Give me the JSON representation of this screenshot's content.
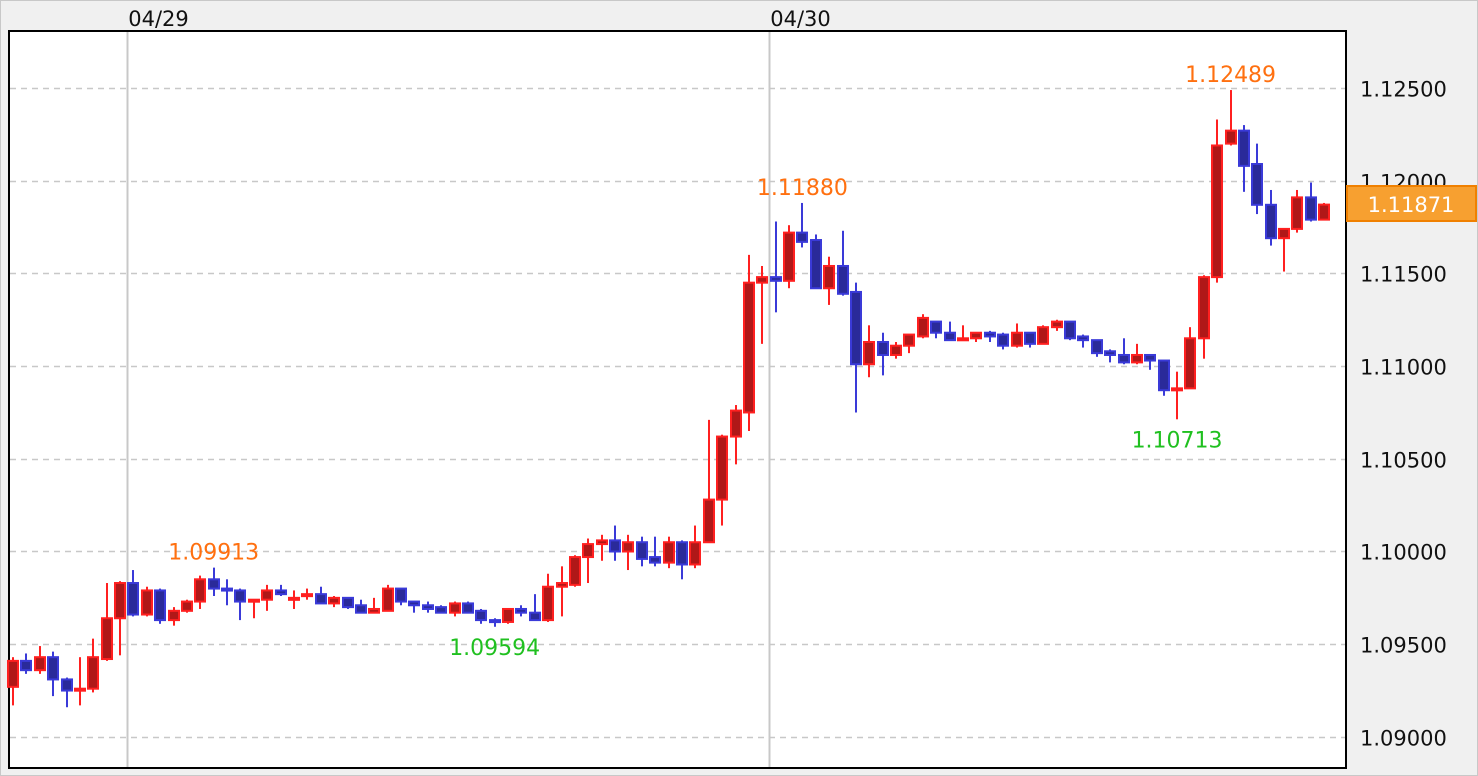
{
  "chart_data": {
    "type": "candlestick",
    "title": "",
    "grid": true,
    "colors": {
      "up_fill": "#b01818",
      "up_border": "#ff2020",
      "down_fill": "#2a2a9a",
      "down_border": "#3a3ad8",
      "high_label": "#ff7010",
      "low_label": "#20c020",
      "last_price_bg": "#f7a030",
      "last_price_border": "#f08000"
    },
    "y_axis": {
      "range": [
        1.0885,
        1.128
      ],
      "ticks": [
        "1.09000",
        "1.09500",
        "1.10000",
        "1.10500",
        "1.11000",
        "1.11500",
        "1.12000",
        "1.12500"
      ]
    },
    "day_labels": [
      {
        "label": "04/29",
        "candle_index": 8.5
      },
      {
        "label": "04/30",
        "candle_index": 56.5
      }
    ],
    "last_price": "1.11871",
    "ohlc_fields": [
      "open",
      "high",
      "low",
      "close"
    ],
    "candles": [
      [
        1.0927,
        1.0943,
        1.0917,
        1.0941
      ],
      [
        1.0941,
        1.0945,
        1.0934,
        1.0936
      ],
      [
        1.0936,
        1.0949,
        1.0934,
        1.0943
      ],
      [
        1.0943,
        1.0946,
        1.0922,
        1.0931
      ],
      [
        1.0931,
        1.0932,
        1.0916,
        1.0925
      ],
      [
        1.0925,
        1.0943,
        1.0917,
        1.0926
      ],
      [
        1.0926,
        1.0953,
        1.0924,
        1.0943
      ],
      [
        1.0942,
        1.0983,
        1.0941,
        1.0964
      ],
      [
        1.0964,
        1.0984,
        1.0944,
        1.0983
      ],
      [
        1.0983,
        1.099,
        1.0965,
        1.0966
      ],
      [
        1.0966,
        1.0981,
        1.0965,
        1.0979
      ],
      [
        1.0979,
        1.098,
        1.0961,
        1.0963
      ],
      [
        1.0963,
        1.097,
        1.096,
        1.0968
      ],
      [
        1.0968,
        1.0974,
        1.0967,
        1.0973
      ],
      [
        1.0973,
        1.0987,
        1.0969,
        1.0985
      ],
      [
        1.0985,
        1.09913,
        1.0976,
        1.098
      ],
      [
        1.098,
        1.0985,
        1.0971,
        1.0979
      ],
      [
        1.0979,
        1.098,
        1.0963,
        1.0973
      ],
      [
        1.0973,
        1.0974,
        1.0964,
        1.0974
      ],
      [
        1.0974,
        1.0982,
        1.0968,
        1.0979
      ],
      [
        1.0979,
        1.0982,
        1.0976,
        1.0977
      ],
      [
        1.0974,
        1.0979,
        1.0969,
        1.0975
      ],
      [
        1.0976,
        1.098,
        1.0974,
        1.0977
      ],
      [
        1.0977,
        1.0981,
        1.0972,
        1.0972
      ],
      [
        1.0972,
        1.0976,
        1.097,
        1.0975
      ],
      [
        1.0975,
        1.0975,
        1.0969,
        1.097
      ],
      [
        1.0971,
        1.0974,
        1.0967,
        1.0967
      ],
      [
        1.0967,
        1.0975,
        1.0967,
        1.0969
      ],
      [
        1.0968,
        1.0982,
        1.0968,
        1.098
      ],
      [
        1.098,
        1.098,
        1.0971,
        1.0973
      ],
      [
        1.0973,
        1.0973,
        1.0967,
        1.0971
      ],
      [
        1.0971,
        1.0973,
        1.0967,
        1.0969
      ],
      [
        1.097,
        1.0971,
        1.0967,
        1.0967
      ],
      [
        1.0967,
        1.0973,
        1.0965,
        1.0972
      ],
      [
        1.0972,
        1.0973,
        1.0967,
        1.0967
      ],
      [
        1.0968,
        1.0969,
        1.0961,
        1.0963
      ],
      [
        1.0963,
        1.0964,
        1.09594,
        1.0962
      ],
      [
        1.0962,
        1.0969,
        1.0961,
        1.0969
      ],
      [
        1.0969,
        1.0971,
        1.0965,
        1.0967
      ],
      [
        1.0967,
        1.0977,
        1.0963,
        1.0963
      ],
      [
        1.0963,
        1.0988,
        1.0962,
        1.0981
      ],
      [
        1.0981,
        1.0992,
        1.0965,
        1.0983
      ],
      [
        1.0982,
        1.0998,
        1.0981,
        1.0997
      ],
      [
        1.0997,
        1.1007,
        1.0983,
        1.1004
      ],
      [
        1.1004,
        1.1009,
        1.0995,
        1.1006
      ],
      [
        1.1006,
        1.1014,
        1.0995,
        1.1
      ],
      [
        1.1,
        1.1009,
        1.099,
        1.1005
      ],
      [
        1.1005,
        1.1008,
        1.0992,
        1.0996
      ],
      [
        1.0997,
        1.1008,
        1.0992,
        1.0994
      ],
      [
        1.0994,
        1.1008,
        1.0991,
        1.1005
      ],
      [
        1.1005,
        1.1006,
        1.0985,
        1.0993
      ],
      [
        1.0993,
        1.1014,
        1.0991,
        1.1005
      ],
      [
        1.1005,
        1.1071,
        1.1005,
        1.1028
      ],
      [
        1.1028,
        1.1063,
        1.1014,
        1.1062
      ],
      [
        1.1062,
        1.1079,
        1.1047,
        1.1076
      ],
      [
        1.1075,
        1.116,
        1.1065,
        1.1145
      ],
      [
        1.1145,
        1.1154,
        1.1112,
        1.1148
      ],
      [
        1.1148,
        1.1178,
        1.1129,
        1.1146
      ],
      [
        1.1146,
        1.1176,
        1.1142,
        1.1172
      ],
      [
        1.1172,
        1.1188,
        1.1164,
        1.1167
      ],
      [
        1.1168,
        1.1171,
        1.1142,
        1.1142
      ],
      [
        1.1142,
        1.1159,
        1.1133,
        1.1154
      ],
      [
        1.1154,
        1.1173,
        1.1138,
        1.1139
      ],
      [
        1.114,
        1.1145,
        1.1075,
        1.1101
      ],
      [
        1.1101,
        1.1122,
        1.1094,
        1.1113
      ],
      [
        1.1113,
        1.1118,
        1.1095,
        1.1106
      ],
      [
        1.1106,
        1.1113,
        1.1104,
        1.1111
      ],
      [
        1.1111,
        1.1117,
        1.1107,
        1.1117
      ],
      [
        1.1116,
        1.1128,
        1.1115,
        1.1126
      ],
      [
        1.1124,
        1.1124,
        1.1115,
        1.1118
      ],
      [
        1.1118,
        1.1124,
        1.1114,
        1.1114
      ],
      [
        1.1114,
        1.1122,
        1.1114,
        1.1115
      ],
      [
        1.1115,
        1.1118,
        1.1113,
        1.1118
      ],
      [
        1.1118,
        1.1119,
        1.1113,
        1.1116
      ],
      [
        1.1117,
        1.1118,
        1.1109,
        1.1111
      ],
      [
        1.1111,
        1.1123,
        1.111,
        1.1118
      ],
      [
        1.1118,
        1.1118,
        1.111,
        1.1112
      ],
      [
        1.1112,
        1.1122,
        1.1112,
        1.1121
      ],
      [
        1.1121,
        1.1125,
        1.1119,
        1.1124
      ],
      [
        1.1124,
        1.1124,
        1.1114,
        1.1115
      ],
      [
        1.1116,
        1.1117,
        1.111,
        1.1114
      ],
      [
        1.1114,
        1.1114,
        1.1105,
        1.1107
      ],
      [
        1.1108,
        1.1109,
        1.1102,
        1.1106
      ],
      [
        1.1106,
        1.1115,
        1.1101,
        1.1102
      ],
      [
        1.1102,
        1.1112,
        1.1101,
        1.1106
      ],
      [
        1.1106,
        1.1106,
        1.1098,
        1.1103
      ],
      [
        1.1103,
        1.1103,
        1.1084,
        1.1087
      ],
      [
        1.1087,
        1.1097,
        1.10713,
        1.1088
      ],
      [
        1.1088,
        1.1121,
        1.1088,
        1.1115
      ],
      [
        1.1115,
        1.1149,
        1.1104,
        1.1148
      ],
      [
        1.1148,
        1.1233,
        1.1145,
        1.1219
      ],
      [
        1.122,
        1.12489,
        1.1219,
        1.1227
      ],
      [
        1.1227,
        1.123,
        1.1194,
        1.1208
      ],
      [
        1.1209,
        1.122,
        1.1182,
        1.1187
      ],
      [
        1.1187,
        1.1195,
        1.1165,
        1.1169
      ],
      [
        1.1169,
        1.1174,
        1.1151,
        1.1174
      ],
      [
        1.1174,
        1.1195,
        1.1172,
        1.1191
      ],
      [
        1.1191,
        1.1199,
        1.1178,
        1.1179
      ],
      [
        1.1179,
        1.1188,
        1.1179,
        1.11871
      ]
    ],
    "annotations": [
      {
        "type": "high",
        "candle_index": 15,
        "value": 1.09913,
        "label": "1.09913"
      },
      {
        "type": "high",
        "candle_index": 59,
        "value": 1.1188,
        "label": "1.11880"
      },
      {
        "type": "high",
        "candle_index": 91,
        "value": 1.12489,
        "label": "1.12489"
      },
      {
        "type": "low",
        "candle_index": 36,
        "value": 1.09594,
        "label": "1.09594"
      },
      {
        "type": "low",
        "candle_index": 87,
        "value": 1.10713,
        "label": "1.10713"
      }
    ]
  }
}
